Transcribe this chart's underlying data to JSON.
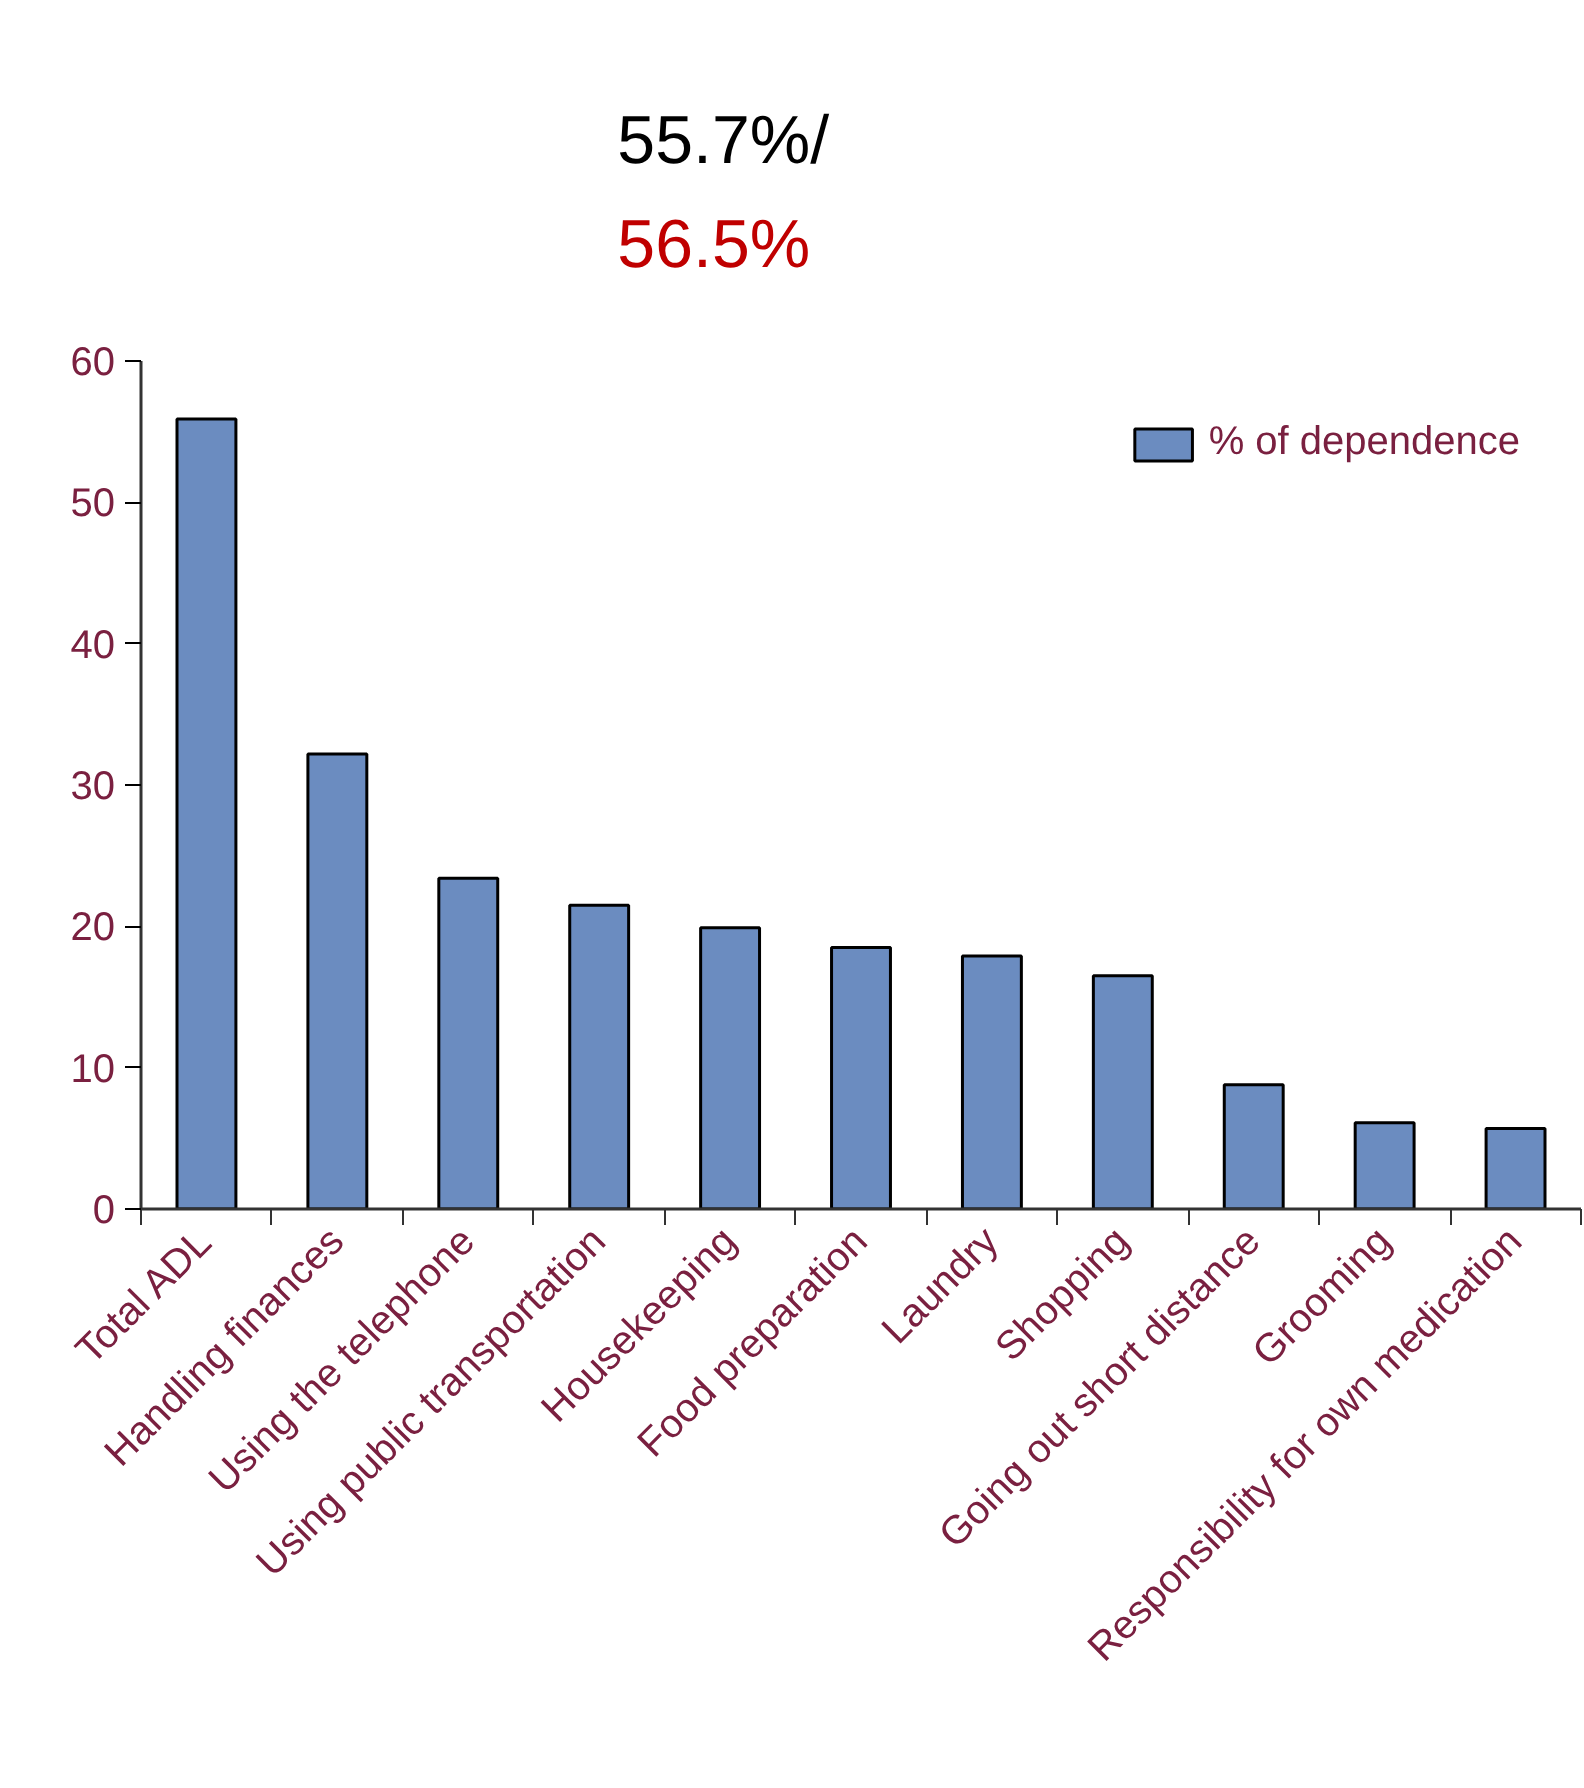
{
  "chart_data": {
    "type": "bar",
    "categories": [
      "Total ADL",
      "Handling finances",
      "Using the telephone",
      "Using public transportation",
      "Housekeeping",
      "Food preparation",
      "Laundry",
      "Shopping",
      "Going out short distance",
      "Grooming",
      "Responsibility for own medication"
    ],
    "series": [
      {
        "name": "% of dependence",
        "color": "#6b8cc0",
        "values": [
          55.9,
          32.2,
          23.4,
          21.5,
          19.9,
          18.5,
          17.9,
          16.5,
          8.8,
          6.1,
          5.7
        ]
      }
    ],
    "ylim": [
      0,
      60
    ],
    "yticks": [
      0,
      10,
      20,
      30,
      40,
      50,
      60
    ],
    "annotations": [
      "55.7%/",
      "56.5%"
    ],
    "legend": "top right",
    "grid": false
  }
}
